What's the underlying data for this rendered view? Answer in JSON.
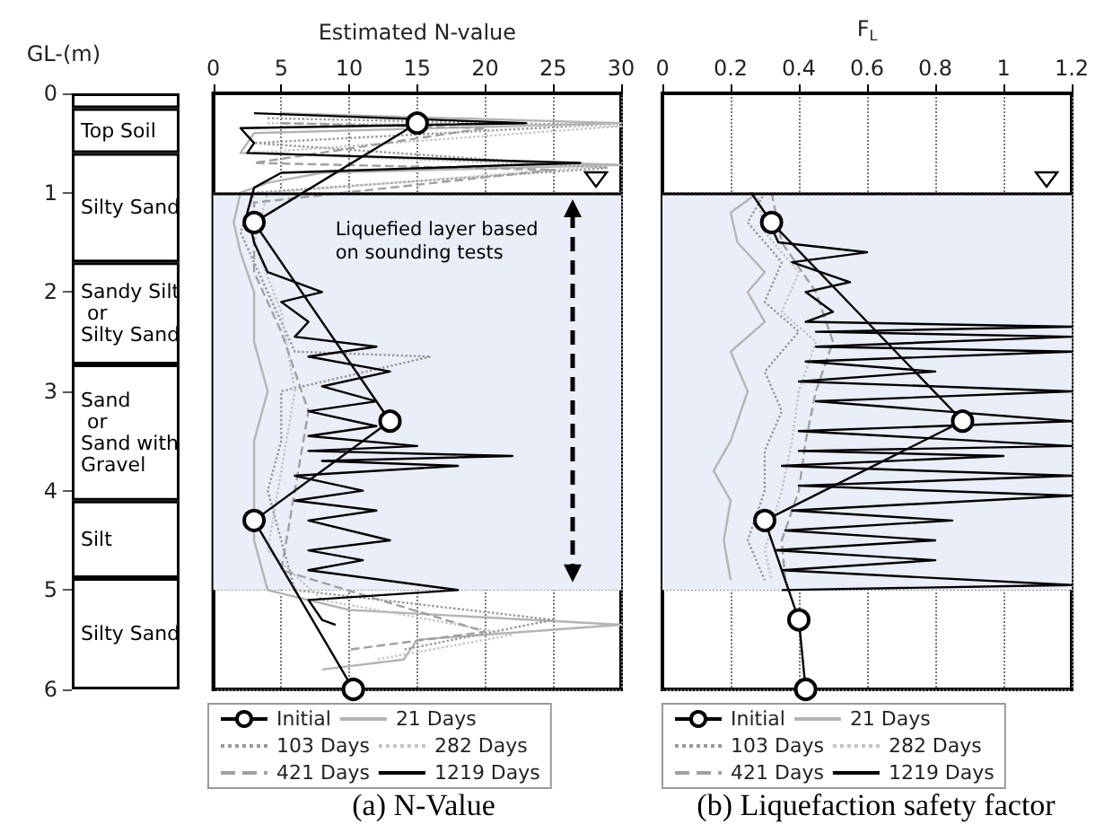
{
  "chart_data": [
    {
      "type": "bar",
      "stacked": true,
      "ylabel": "GL-(m)",
      "ylim": [
        6,
        0
      ],
      "yticks": [
        0,
        1,
        2,
        3,
        4,
        5,
        6
      ],
      "tick_labels": "y",
      "categories": [
        null
      ],
      "series": [
        {
          "color": "#ffffff",
          "values": [
            0.15
          ]
        },
        {
          "name": "Top Soil",
          "color": "#ffffff",
          "values": [
            0.45
          ]
        },
        {
          "name": "Silty Sand",
          "color": "#ffffff",
          "values": [
            1.1
          ]
        },
        {
          "name": "Sandy Silt\n or\nSilty Sand",
          "color": "#ffffff",
          "values": [
            1.03
          ]
        },
        {
          "name": "Sand\n or\nSand with\nGravel",
          "color": "#ffffff",
          "values": [
            1.37
          ]
        },
        {
          "name": "Silt",
          "color": "#ffffff",
          "values": [
            0.78
          ]
        },
        {
          "name": "Silty Sand",
          "color": "#ffffff",
          "values": [
            1.12
          ]
        }
      ]
    },
    {
      "type": "line",
      "title": "(a) N-Value",
      "xlabel": "Estimated N-value",
      "xlim": [
        0,
        30
      ],
      "xticks": [
        0,
        5,
        10,
        15,
        20,
        25,
        30
      ],
      "ylim": [
        6,
        0
      ],
      "yticks": [
        0,
        1,
        2,
        3,
        4,
        5,
        6
      ],
      "tick_labels": "x",
      "grid": true,
      "legend": "bottom",
      "bands": [
        {
          "axis": "y",
          "from": 1,
          "to": 5,
          "label": "Liquefied layer based on sounding tests",
          "color": "#e9eef8"
        }
      ],
      "ref_lines": [
        {
          "axis": "y",
          "value": 1,
          "color": "#000000"
        }
      ],
      "series": [
        {
          "name": "Initial",
          "color": "#000000",
          "marker": "circle",
          "line_style": "solid",
          "x": [
            15,
            3,
            13,
            3,
            10.3
          ],
          "values": [
            0.3,
            1.3,
            3.3,
            4.3,
            6
          ]
        },
        {
          "name": "21 Days",
          "color": "#b4b4b4",
          "marker": "none",
          "line_style": "solid",
          "x": [
            5,
            30,
            3,
            2,
            30,
            8,
            4,
            2,
            1.5,
            2,
            3,
            3,
            4,
            3,
            3,
            3,
            4,
            10,
            30,
            15,
            14,
            8
          ],
          "values": [
            0.2,
            0.3,
            0.4,
            0.6,
            0.72,
            0.8,
            0.9,
            1.0,
            1.3,
            1.6,
            2.0,
            2.5,
            3.0,
            3.5,
            4.0,
            4.5,
            5.0,
            5.2,
            5.35,
            5.5,
            5.7,
            5.8
          ]
        },
        {
          "name": "103 Days",
          "color": "#999999",
          "marker": "none",
          "line_style": "dotted",
          "x": [
            4,
            28,
            3,
            29,
            3,
            2,
            4,
            6,
            16,
            5,
            5,
            4,
            5,
            6,
            25,
            14
          ],
          "values": [
            0.25,
            0.32,
            0.5,
            0.75,
            1.0,
            1.4,
            2.0,
            2.6,
            2.65,
            3.0,
            3.5,
            4.0,
            4.5,
            5.0,
            5.3,
            5.6
          ]
        },
        {
          "name": "282 Days",
          "color": "#c4c4c4",
          "marker": "none",
          "line_style": "dotted",
          "x": [
            4,
            30,
            3,
            28,
            4,
            3,
            5,
            6,
            5,
            4,
            8,
            22,
            12
          ],
          "values": [
            0.3,
            0.33,
            0.6,
            0.74,
            1.0,
            1.5,
            2.2,
            3.0,
            3.8,
            4.6,
            5.1,
            5.45,
            5.7
          ]
        },
        {
          "name": "421 Days",
          "color": "#a0a0a0",
          "marker": "none",
          "line_style": "dashed",
          "x": [
            5,
            20,
            3,
            25,
            3,
            3,
            5,
            7,
            6,
            5,
            20,
            10
          ],
          "values": [
            0.3,
            0.35,
            0.7,
            0.77,
            1.1,
            1.8,
            2.4,
            3.2,
            4.0,
            4.8,
            5.42,
            5.6
          ]
        },
        {
          "name": "1219 Days",
          "color": "#000000",
          "marker": "none",
          "line_style": "solid",
          "x": [
            3,
            23,
            2,
            3,
            2.5,
            27,
            5,
            3,
            2.5,
            3,
            4,
            8,
            5,
            7,
            6,
            12,
            7,
            13,
            8,
            12,
            7,
            12,
            7,
            15,
            7,
            22,
            8,
            18,
            6,
            11,
            6,
            12,
            7,
            13,
            7,
            11,
            7,
            18,
            7,
            8,
            9
          ],
          "values": [
            0.2,
            0.3,
            0.35,
            0.5,
            0.6,
            0.7,
            0.8,
            0.95,
            1.2,
            1.5,
            1.8,
            2.0,
            2.1,
            2.3,
            2.45,
            2.55,
            2.65,
            2.8,
            2.95,
            3.1,
            3.2,
            3.35,
            3.45,
            3.55,
            3.6,
            3.65,
            3.7,
            3.75,
            3.85,
            4.0,
            4.1,
            4.2,
            4.3,
            4.5,
            4.6,
            4.7,
            4.8,
            5.0,
            5.1,
            5.3,
            5.35
          ]
        }
      ]
    },
    {
      "type": "line",
      "title": "(b) Liquefaction safety factor",
      "xlabel": "F$_{L}$",
      "xlim": [
        0,
        1.2
      ],
      "xticks": [
        0,
        0.2,
        0.4,
        0.6,
        0.8,
        1,
        1.2
      ],
      "ylim": [
        6,
        0
      ],
      "yticks": [
        0,
        1,
        2,
        3,
        4,
        5,
        6
      ],
      "tick_labels": "x",
      "grid": true,
      "legend": "bottom",
      "bands": [
        {
          "axis": "y",
          "from": 1,
          "to": 5,
          "label": null,
          "color": "#e9eef8"
        }
      ],
      "ref_lines": [
        {
          "axis": "y",
          "value": 1,
          "color": "#000000"
        }
      ],
      "series": [
        {
          "name": "Initial",
          "color": "#000000",
          "marker": "circle",
          "line_style": "solid",
          "x": [
            0.32,
            0.88,
            0.3,
            0.4,
            0.42
          ],
          "values": [
            1.3,
            3.3,
            4.3,
            5.3,
            6
          ]
        },
        {
          "name": "21 Days",
          "color": "#b4b4b4",
          "marker": "none",
          "line_style": "solid",
          "x": [
            0.28,
            0.2,
            0.22,
            0.3,
            0.25,
            0.3,
            0.2,
            0.25,
            0.2,
            0.15,
            0.2,
            0.18,
            0.2
          ],
          "values": [
            1.0,
            1.2,
            1.5,
            1.8,
            2.0,
            2.3,
            2.6,
            3.0,
            3.5,
            3.8,
            4.1,
            4.5,
            4.9
          ]
        },
        {
          "name": "103 Days",
          "color": "#999999",
          "marker": "none",
          "line_style": "dotted",
          "x": [
            0.3,
            0.25,
            0.35,
            0.3,
            0.4,
            0.3,
            0.35,
            0.3,
            0.3,
            0.25,
            0.3
          ],
          "values": [
            1.0,
            1.3,
            1.7,
            2.1,
            2.4,
            2.8,
            3.2,
            3.6,
            4.0,
            4.5,
            4.9
          ]
        },
        {
          "name": "282 Days",
          "color": "#c4c4c4",
          "marker": "none",
          "line_style": "dotted",
          "x": [
            0.28,
            0.3,
            0.4,
            0.35,
            0.45,
            0.4,
            0.38,
            0.35,
            0.3,
            0.32
          ],
          "values": [
            1.05,
            1.4,
            1.8,
            2.2,
            2.5,
            3.0,
            3.5,
            4.0,
            4.6,
            4.9
          ]
        },
        {
          "name": "421 Days",
          "color": "#a0a0a0",
          "marker": "none",
          "line_style": "dashed",
          "x": [
            0.32,
            0.35,
            0.45,
            0.5,
            0.45,
            0.42,
            0.4,
            0.35,
            0.36
          ],
          "values": [
            1.0,
            1.5,
            2.0,
            2.5,
            3.0,
            3.5,
            4.0,
            4.5,
            4.9
          ]
        },
        {
          "name": "1219 Days",
          "color": "#000000",
          "marker": "none",
          "line_style": "solid",
          "x": [
            0.26,
            0.3,
            0.34,
            0.6,
            0.38,
            0.55,
            0.42,
            0.5,
            0.42,
            1.2,
            0.45,
            1.2,
            0.45,
            1.2,
            0.42,
            0.8,
            0.4,
            1.2,
            0.45,
            1.2,
            0.4,
            1.2,
            0.4,
            1.0,
            0.35,
            1.2,
            0.4,
            1.2,
            0.38,
            0.85,
            0.36,
            0.8,
            0.33,
            0.8,
            0.35,
            1.2,
            0.35
          ],
          "values": [
            1.0,
            1.2,
            1.5,
            1.6,
            1.7,
            1.9,
            2.0,
            2.2,
            2.3,
            2.35,
            2.4,
            2.45,
            2.55,
            2.6,
            2.7,
            2.8,
            2.9,
            3.0,
            3.1,
            3.3,
            3.4,
            3.55,
            3.6,
            3.65,
            3.75,
            3.85,
            3.95,
            4.05,
            4.2,
            4.3,
            4.4,
            4.5,
            4.6,
            4.7,
            4.8,
            4.95,
            5.0
          ]
        }
      ]
    }
  ]
}
